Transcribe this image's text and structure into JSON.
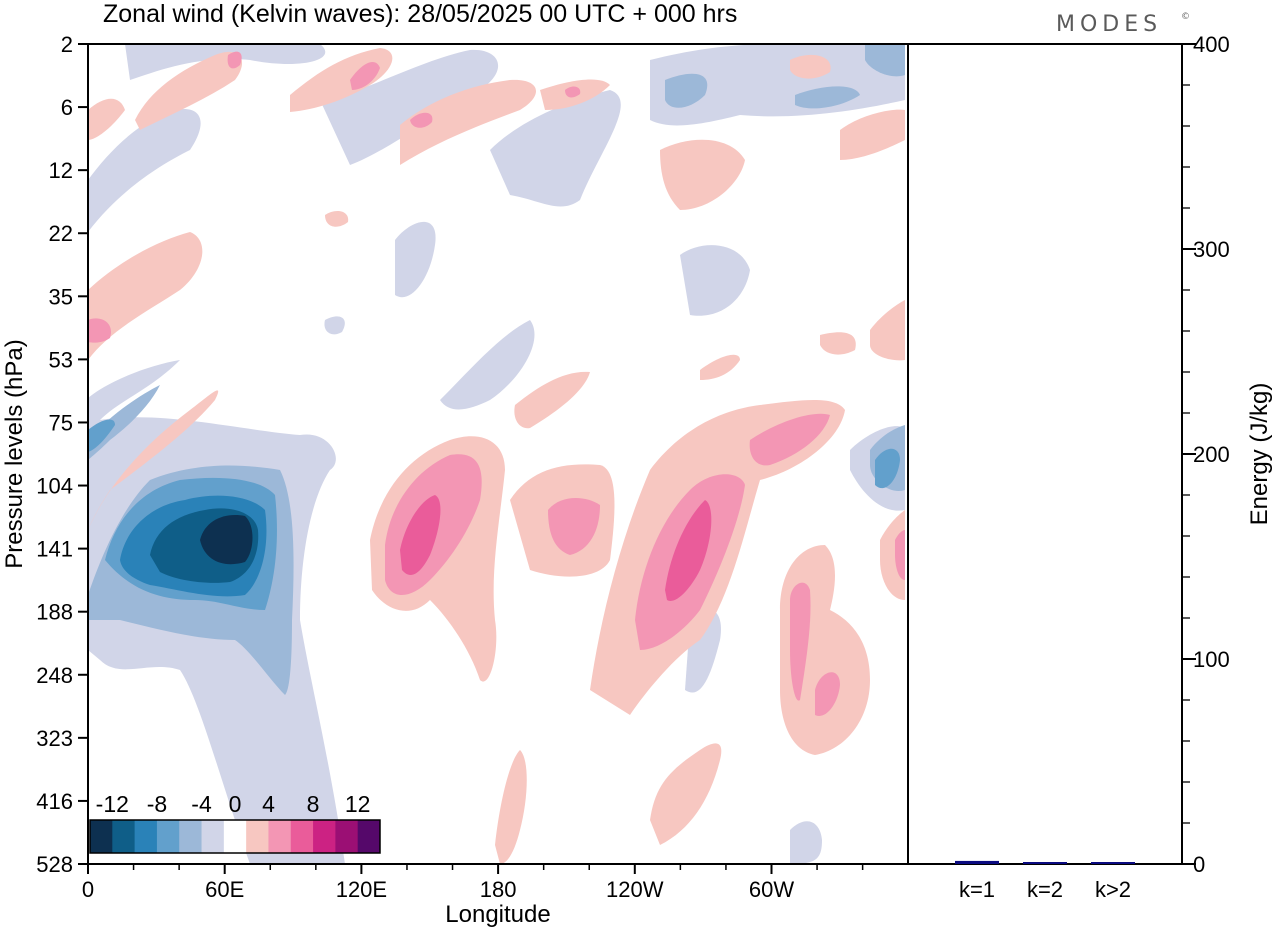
{
  "title": "Zonal wind (Kelvin waves):  28/05/2025  00 UTC  + 000 hrs",
  "brand": "MODES",
  "brand_mark": "©",
  "chart_data": [
    {
      "type": "heatmap",
      "variable": "Zonal wind (Kelvin waves)",
      "xlabel": "Longitude",
      "ylabel": "Pressure levels (hPa)",
      "x_ticks": [
        "0",
        "60E",
        "120E",
        "180",
        "120W",
        "60W"
      ],
      "y_ticks": [
        "2",
        "6",
        "12",
        "22",
        "35",
        "53",
        "75",
        "104",
        "141",
        "188",
        "248",
        "323",
        "416",
        "528"
      ],
      "y_direction": "pressure increasing downward",
      "colorbar": {
        "labels": [
          "-12",
          "-8",
          "-4",
          "0",
          "4",
          "8",
          "12"
        ],
        "bounds": [
          -14,
          -12,
          -10,
          -8,
          -6,
          -4,
          -2,
          2,
          4,
          6,
          8,
          10,
          12,
          14
        ],
        "colors": [
          "#0d3050",
          "#0f5e88",
          "#2a82b8",
          "#62a0cc",
          "#9cb8d8",
          "#d1d5e8",
          "#ffffff",
          "#f7c7c1",
          "#f396b4",
          "#ea5c9a",
          "#cc2283",
          "#9b0f74",
          "#55086a"
        ]
      },
      "features": [
        {
          "name": "strong easterly core",
          "center_lon": 60,
          "center_level": "141",
          "value": -14
        },
        {
          "name": "westerly core",
          "center_lon": 150,
          "center_level": "141",
          "value": 10
        },
        {
          "name": "westerly core",
          "center_lon": 235,
          "center_level": "141",
          "value": 10
        },
        {
          "name": "westerly band",
          "center_lon": 320,
          "center_level": "248",
          "value": 6
        },
        {
          "name": "easterly patch",
          "center_lon": 355,
          "center_level": "104",
          "value": -8
        }
      ]
    },
    {
      "type": "bar",
      "categories": [
        "k=1",
        "k=2",
        "k>2"
      ],
      "values": [
        1.5,
        0.5,
        0.8
      ],
      "ylabel": "Energy (J/kg)",
      "ylim": [
        0,
        400
      ],
      "y_ticks": [
        "0",
        "100",
        "200",
        "300",
        "400"
      ],
      "bar_color": "#0a0a80"
    }
  ]
}
